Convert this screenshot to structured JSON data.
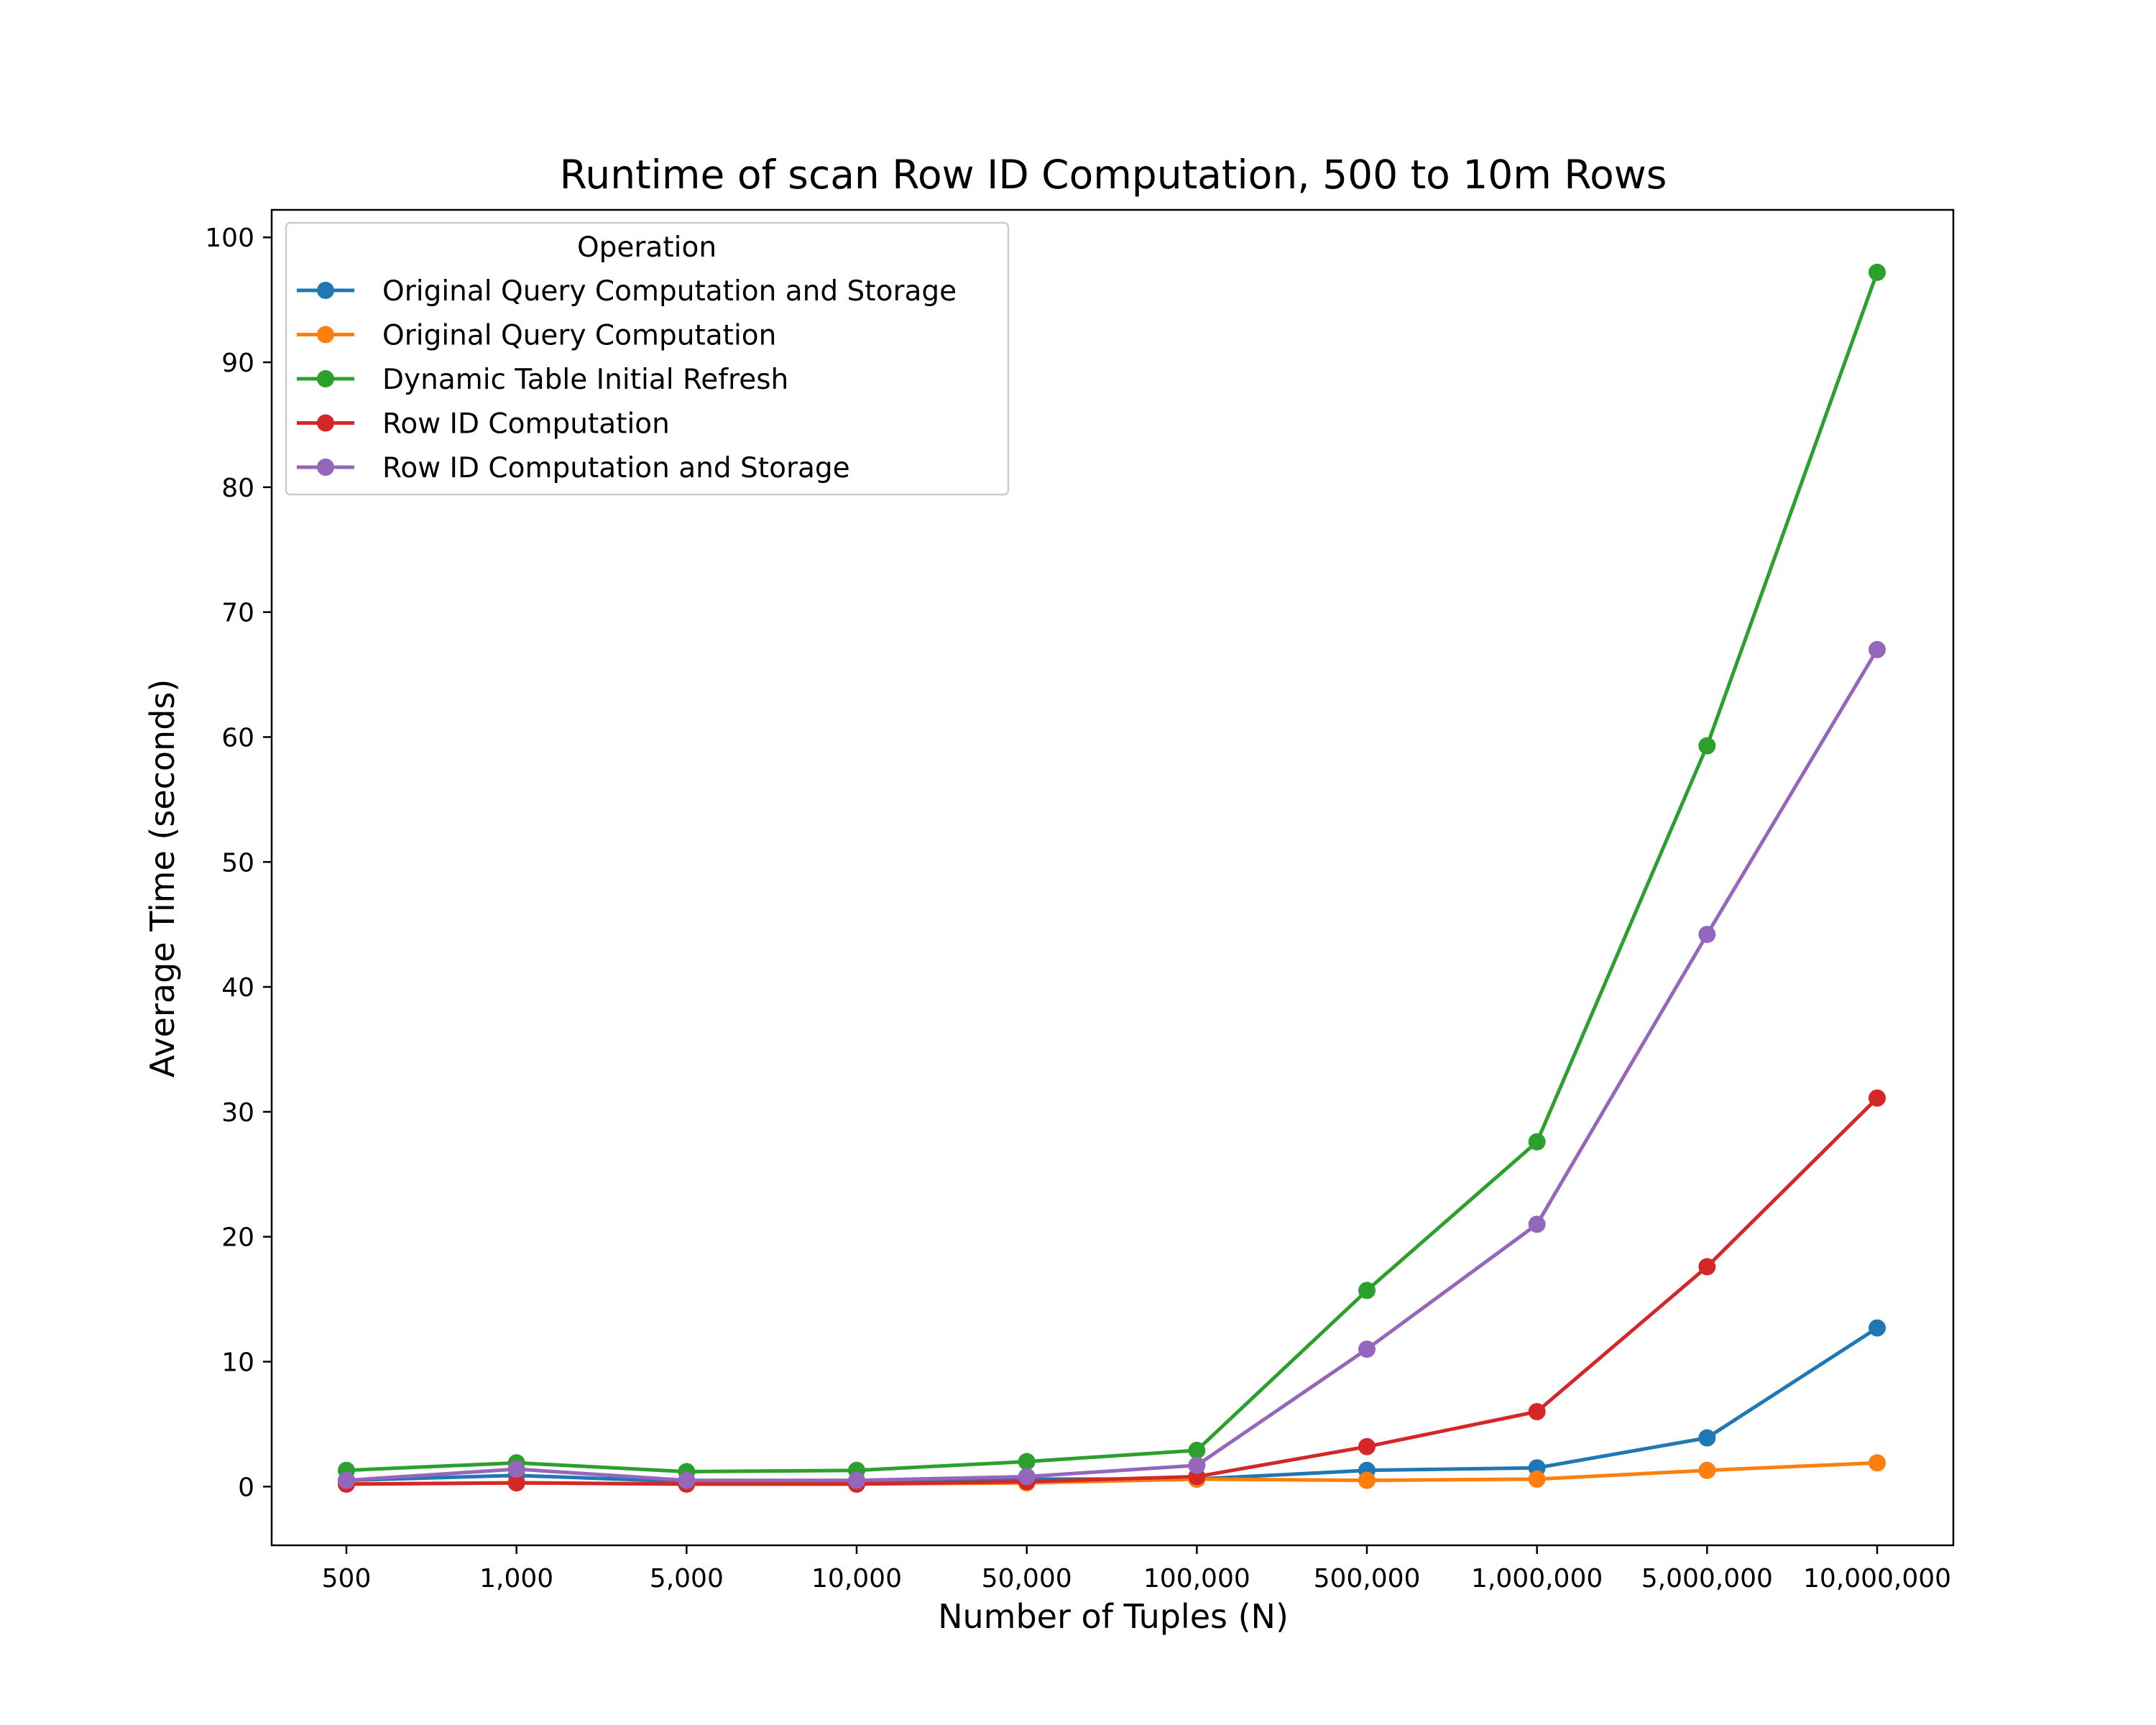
{
  "chart_data": {
    "type": "line",
    "title": "Runtime of scan Row ID Computation, 500 to 10m Rows",
    "xlabel": "Number of Tuples (N)",
    "ylabel": "Average Time (seconds)",
    "categories": [
      "500",
      "1,000",
      "5,000",
      "10,000",
      "50,000",
      "100,000",
      "500,000",
      "1,000,000",
      "5,000,000",
      "10,000,000"
    ],
    "ylim": [
      -4.7,
      102.2
    ],
    "yticks": [
      0,
      10,
      20,
      30,
      40,
      50,
      60,
      70,
      80,
      90,
      100
    ],
    "grid": false,
    "legend": {
      "title": "Operation",
      "placement": "top-left"
    },
    "series": [
      {
        "name": "Original Query Computation and Storage",
        "color": "#1f77b4",
        "values": [
          0.5,
          0.9,
          0.4,
          0.4,
          0.6,
          0.6,
          1.3,
          1.5,
          3.9,
          12.7
        ]
      },
      {
        "name": "Original Query Computation",
        "color": "#ff7f0e",
        "values": [
          0.2,
          0.3,
          0.2,
          0.2,
          0.3,
          0.6,
          0.5,
          0.6,
          1.3,
          1.9
        ]
      },
      {
        "name": "Dynamic Table Initial Refresh",
        "color": "#2ca02c",
        "values": [
          1.3,
          1.9,
          1.2,
          1.3,
          2.0,
          2.9,
          15.7,
          27.6,
          59.3,
          97.2
        ]
      },
      {
        "name": "Row ID Computation",
        "color": "#d62728",
        "values": [
          0.2,
          0.3,
          0.2,
          0.2,
          0.4,
          0.8,
          3.2,
          6.0,
          17.6,
          31.1
        ]
      },
      {
        "name": "Row ID Computation and Storage",
        "color": "#9467bd",
        "values": [
          0.5,
          1.4,
          0.5,
          0.5,
          0.8,
          1.7,
          11.0,
          21.0,
          44.2,
          67.0
        ]
      }
    ]
  }
}
